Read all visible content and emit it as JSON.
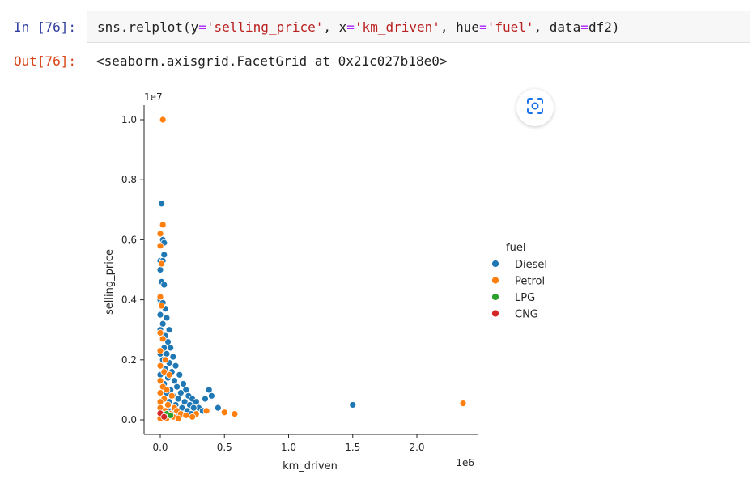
{
  "cell": {
    "in_prompt": "In [76]:",
    "out_prompt": "Out[76]:",
    "code": {
      "fn": "sns.relplot(",
      "y_kw": "y",
      "y_val": "'selling_price'",
      "x_kw": "x",
      "x_val": "'km_driven'",
      "hue_kw": "hue",
      "hue_val": "'fuel'",
      "data_kw": "data",
      "data_val": "df2)"
    },
    "output": "<seaborn.axisgrid.FacetGrid at 0x21c027b18e0>"
  },
  "chart_data": {
    "type": "scatter",
    "xlabel": "km_driven",
    "ylabel": "selling_price",
    "x_offset_label": "1e6",
    "y_offset_label": "1e7",
    "xlim": [
      -0.12,
      2.48
    ],
    "ylim": [
      -0.03,
      1.05
    ],
    "x_ticks": [
      0.0,
      0.5,
      1.0,
      1.5,
      2.0
    ],
    "x_tick_labels": [
      "0.0",
      "0.5",
      "1.0",
      "1.5",
      "2.0"
    ],
    "y_ticks": [
      0.0,
      0.2,
      0.4,
      0.6,
      0.8,
      1.0
    ],
    "y_tick_labels": [
      "0.0",
      "0.2",
      "0.4",
      "0.6",
      "0.8",
      "1.0"
    ],
    "legend_title": "fuel",
    "legend_placement": "right",
    "series": [
      {
        "name": "Diesel",
        "color": "#1f77b4",
        "points": [
          [
            0.01,
            0.72
          ],
          [
            0.02,
            0.6
          ],
          [
            0.03,
            0.59
          ],
          [
            0.03,
            0.55
          ],
          [
            0.0,
            0.53
          ],
          [
            0.02,
            0.53
          ],
          [
            0.0,
            0.5
          ],
          [
            0.01,
            0.46
          ],
          [
            0.03,
            0.45
          ],
          [
            0.0,
            0.4
          ],
          [
            0.02,
            0.39
          ],
          [
            0.04,
            0.37
          ],
          [
            0.0,
            0.35
          ],
          [
            0.05,
            0.34
          ],
          [
            0.02,
            0.32
          ],
          [
            0.07,
            0.3
          ],
          [
            0.0,
            0.3
          ],
          [
            0.04,
            0.28
          ],
          [
            0.01,
            0.27
          ],
          [
            0.06,
            0.26
          ],
          [
            0.03,
            0.24
          ],
          [
            0.08,
            0.24
          ],
          [
            0.0,
            0.22
          ],
          [
            0.05,
            0.22
          ],
          [
            0.1,
            0.21
          ],
          [
            0.02,
            0.2
          ],
          [
            0.07,
            0.19
          ],
          [
            0.12,
            0.18
          ],
          [
            0.04,
            0.17
          ],
          [
            0.09,
            0.16
          ],
          [
            0.15,
            0.15
          ],
          [
            0.0,
            0.15
          ],
          [
            0.06,
            0.14
          ],
          [
            0.11,
            0.13
          ],
          [
            0.18,
            0.12
          ],
          [
            0.03,
            0.12
          ],
          [
            0.13,
            0.11
          ],
          [
            0.08,
            0.1
          ],
          [
            0.2,
            0.1
          ],
          [
            0.16,
            0.09
          ],
          [
            0.05,
            0.09
          ],
          [
            0.22,
            0.08
          ],
          [
            0.1,
            0.08
          ],
          [
            0.25,
            0.07
          ],
          [
            0.14,
            0.07
          ],
          [
            0.19,
            0.06
          ],
          [
            0.28,
            0.06
          ],
          [
            0.07,
            0.06
          ],
          [
            0.35,
            0.07
          ],
          [
            0.23,
            0.05
          ],
          [
            0.12,
            0.05
          ],
          [
            0.3,
            0.04
          ],
          [
            0.26,
            0.04
          ],
          [
            0.17,
            0.04
          ],
          [
            0.09,
            0.03
          ],
          [
            0.21,
            0.03
          ],
          [
            0.4,
            0.08
          ],
          [
            0.38,
            0.1
          ],
          [
            0.45,
            0.04
          ],
          [
            0.33,
            0.03
          ],
          [
            0.15,
            0.02
          ],
          [
            0.24,
            0.02
          ],
          [
            0.06,
            0.03
          ],
          [
            1.5,
            0.05
          ]
        ]
      },
      {
        "name": "Petrol",
        "color": "#ff7f0e",
        "points": [
          [
            0.02,
            1.0
          ],
          [
            0.02,
            0.65
          ],
          [
            0.0,
            0.62
          ],
          [
            0.0,
            0.58
          ],
          [
            0.01,
            0.52
          ],
          [
            0.0,
            0.41
          ],
          [
            0.01,
            0.38
          ],
          [
            0.0,
            0.29
          ],
          [
            0.02,
            0.27
          ],
          [
            0.0,
            0.23
          ],
          [
            0.04,
            0.2
          ],
          [
            0.0,
            0.18
          ],
          [
            0.03,
            0.16
          ],
          [
            0.07,
            0.15
          ],
          [
            0.0,
            0.13
          ],
          [
            0.02,
            0.11
          ],
          [
            0.05,
            0.1
          ],
          [
            0.0,
            0.09
          ],
          [
            0.09,
            0.08
          ],
          [
            0.03,
            0.07
          ],
          [
            0.0,
            0.06
          ],
          [
            0.06,
            0.05
          ],
          [
            0.11,
            0.04
          ],
          [
            0.0,
            0.04
          ],
          [
            0.04,
            0.03
          ],
          [
            0.13,
            0.03
          ],
          [
            0.08,
            0.02
          ],
          [
            0.01,
            0.02
          ],
          [
            0.16,
            0.02
          ],
          [
            0.02,
            0.01
          ],
          [
            0.1,
            0.01
          ],
          [
            0.2,
            0.015
          ],
          [
            0.05,
            0.005
          ],
          [
            0.0,
            0.005
          ],
          [
            0.28,
            0.02
          ],
          [
            0.36,
            0.03
          ],
          [
            0.5,
            0.025
          ],
          [
            0.58,
            0.02
          ],
          [
            0.25,
            0.01
          ],
          [
            0.14,
            0.005
          ],
          [
            2.36,
            0.055
          ]
        ]
      },
      {
        "name": "LPG",
        "color": "#2ca02c",
        "points": [
          [
            0.05,
            0.02
          ],
          [
            0.08,
            0.015
          ]
        ]
      },
      {
        "name": "CNG",
        "color": "#d62728",
        "points": [
          [
            0.0,
            0.022
          ],
          [
            0.03,
            0.01
          ]
        ]
      }
    ]
  },
  "icons": {
    "camera_button": "screenshot-icon"
  }
}
